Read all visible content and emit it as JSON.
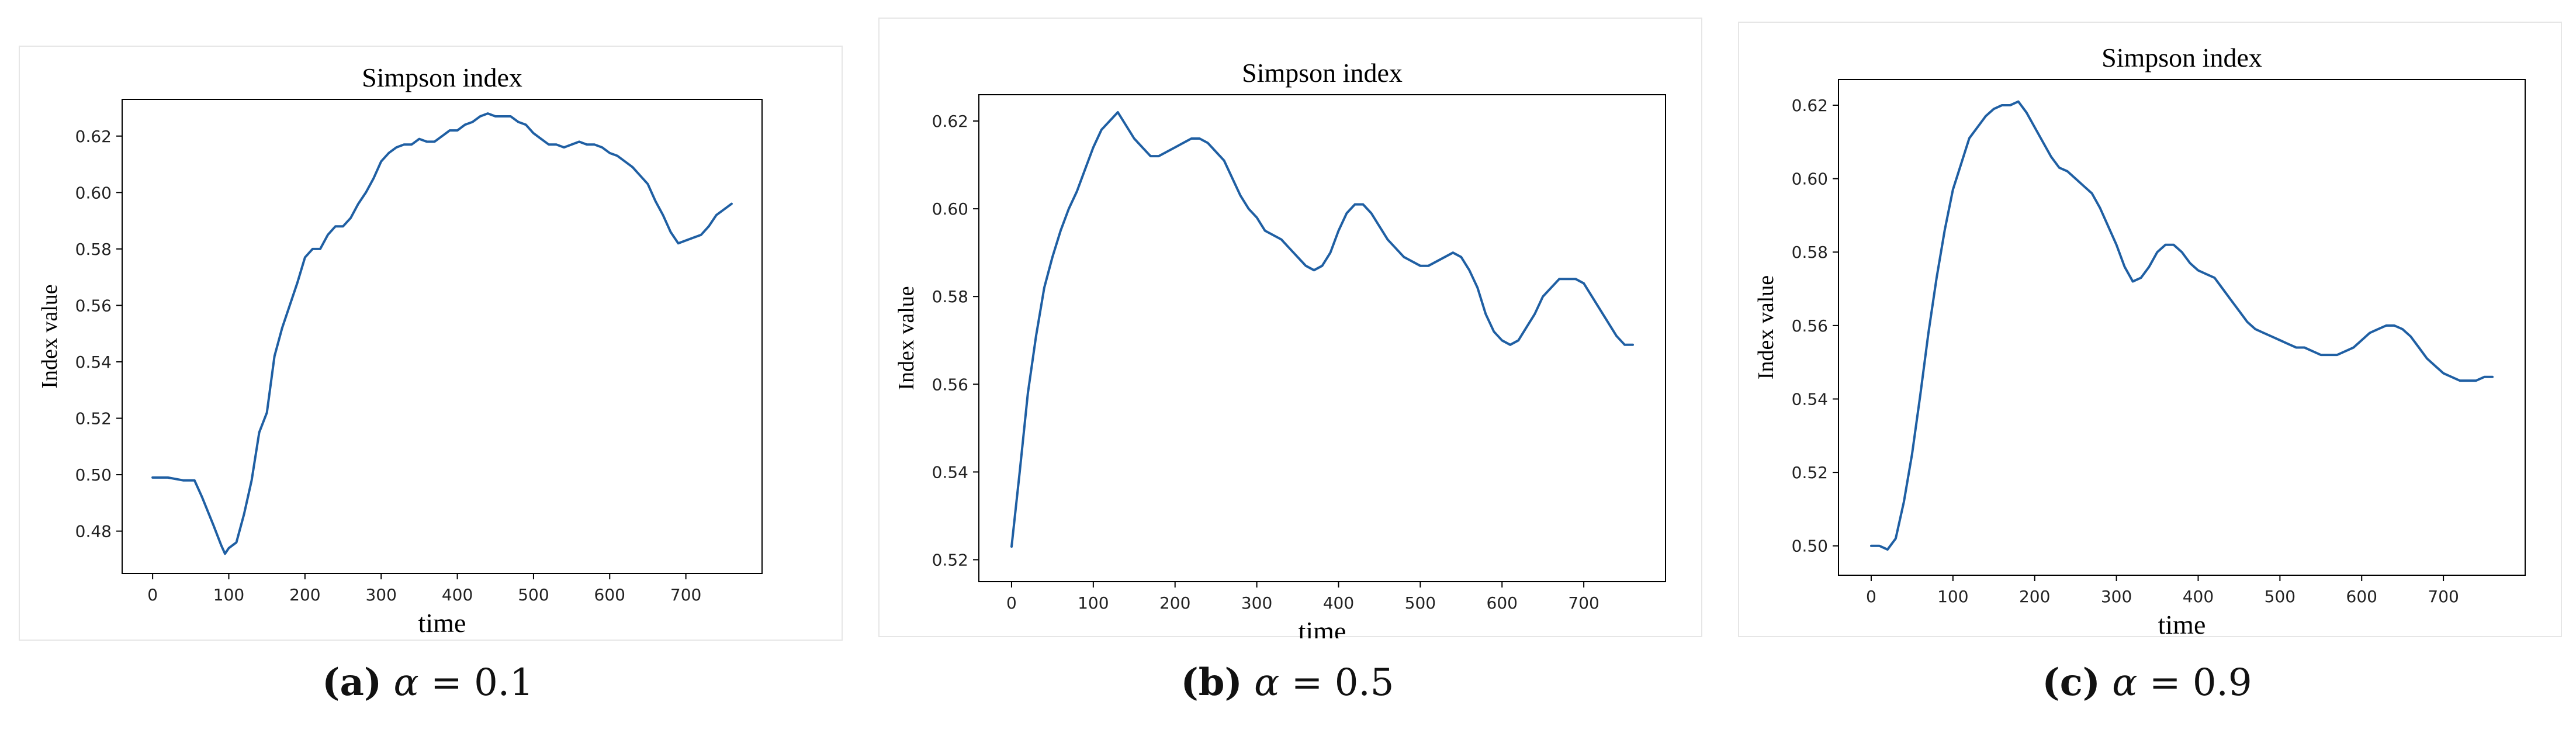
{
  "chart_data": [
    {
      "type": "line",
      "title": "Simpson index",
      "xlabel": "time",
      "ylabel": "Index value",
      "xlim": [
        -40,
        800
      ],
      "ylim": [
        0.465,
        0.633
      ],
      "xticks": [
        0,
        100,
        200,
        300,
        400,
        500,
        600,
        700
      ],
      "yticks": [
        0.48,
        0.5,
        0.52,
        0.54,
        0.56,
        0.58,
        0.6,
        0.62
      ],
      "grid": false,
      "color": "#1f5fa3",
      "series": [
        {
          "x": [
            0,
            20,
            40,
            55,
            65,
            80,
            90,
            95,
            100,
            110,
            120,
            130,
            140,
            150,
            160,
            170,
            180,
            190,
            200,
            210,
            220,
            230,
            240,
            250,
            260,
            270,
            280,
            290,
            300,
            310,
            320,
            330,
            340,
            350,
            360,
            370,
            380,
            390,
            400,
            410,
            420,
            430,
            440,
            450,
            460,
            470,
            480,
            490,
            500,
            510,
            520,
            530,
            540,
            550,
            560,
            570,
            580,
            590,
            600,
            610,
            620,
            630,
            640,
            650,
            660,
            670,
            680,
            690,
            700,
            710,
            720,
            730,
            740,
            750,
            760
          ],
          "values": [
            0.499,
            0.499,
            0.498,
            0.498,
            0.492,
            0.482,
            0.475,
            0.472,
            0.474,
            0.476,
            0.486,
            0.498,
            0.515,
            0.522,
            0.542,
            0.552,
            0.56,
            0.568,
            0.577,
            0.58,
            0.58,
            0.585,
            0.588,
            0.588,
            0.591,
            0.596,
            0.6,
            0.605,
            0.611,
            0.614,
            0.616,
            0.617,
            0.617,
            0.619,
            0.618,
            0.618,
            0.62,
            0.622,
            0.622,
            0.624,
            0.625,
            0.627,
            0.628,
            0.627,
            0.627,
            0.627,
            0.625,
            0.624,
            0.621,
            0.619,
            0.617,
            0.617,
            0.616,
            0.617,
            0.618,
            0.617,
            0.617,
            0.616,
            0.614,
            0.613,
            0.611,
            0.609,
            0.606,
            0.603,
            0.597,
            0.592,
            0.586,
            0.582,
            0.583,
            0.584,
            0.585,
            0.588,
            0.592,
            0.594,
            0.596
          ]
        }
      ]
    },
    {
      "type": "line",
      "title": "Simpson index",
      "xlabel": "time",
      "ylabel": "Index value",
      "xlim": [
        -40,
        800
      ],
      "ylim": [
        0.515,
        0.626
      ],
      "xticks": [
        0,
        100,
        200,
        300,
        400,
        500,
        600,
        700
      ],
      "yticks": [
        0.52,
        0.54,
        0.56,
        0.58,
        0.6,
        0.62
      ],
      "grid": false,
      "color": "#1f5fa3",
      "series": [
        {
          "x": [
            0,
            10,
            20,
            30,
            40,
            50,
            60,
            70,
            80,
            90,
            100,
            110,
            120,
            130,
            140,
            150,
            160,
            170,
            180,
            190,
            200,
            210,
            220,
            230,
            240,
            250,
            260,
            270,
            280,
            290,
            300,
            310,
            320,
            330,
            340,
            350,
            360,
            370,
            380,
            390,
            400,
            410,
            420,
            430,
            440,
            450,
            460,
            470,
            480,
            490,
            500,
            510,
            520,
            530,
            540,
            550,
            560,
            570,
            580,
            590,
            600,
            610,
            620,
            630,
            640,
            650,
            660,
            670,
            680,
            690,
            700,
            710,
            720,
            730,
            740,
            750,
            760
          ],
          "values": [
            0.523,
            0.54,
            0.558,
            0.571,
            0.582,
            0.589,
            0.595,
            0.6,
            0.604,
            0.609,
            0.614,
            0.618,
            0.62,
            0.622,
            0.619,
            0.616,
            0.614,
            0.612,
            0.612,
            0.613,
            0.614,
            0.615,
            0.616,
            0.616,
            0.615,
            0.613,
            0.611,
            0.607,
            0.603,
            0.6,
            0.598,
            0.595,
            0.594,
            0.593,
            0.591,
            0.589,
            0.587,
            0.586,
            0.587,
            0.59,
            0.595,
            0.599,
            0.601,
            0.601,
            0.599,
            0.596,
            0.593,
            0.591,
            0.589,
            0.588,
            0.587,
            0.587,
            0.588,
            0.589,
            0.59,
            0.589,
            0.586,
            0.582,
            0.576,
            0.572,
            0.57,
            0.569,
            0.57,
            0.573,
            0.576,
            0.58,
            0.582,
            0.584,
            0.584,
            0.584,
            0.583,
            0.58,
            0.577,
            0.574,
            0.571,
            0.569,
            0.569
          ]
        }
      ]
    },
    {
      "type": "line",
      "title": "Simpson index",
      "xlabel": "time",
      "ylabel": "Index value",
      "xlim": [
        -40,
        800
      ],
      "ylim": [
        0.492,
        0.627
      ],
      "xticks": [
        0,
        100,
        200,
        300,
        400,
        500,
        600,
        700
      ],
      "yticks": [
        0.5,
        0.52,
        0.54,
        0.56,
        0.58,
        0.6,
        0.62
      ],
      "grid": false,
      "color": "#1f5fa3",
      "series": [
        {
          "x": [
            0,
            10,
            20,
            30,
            40,
            50,
            60,
            70,
            80,
            90,
            100,
            110,
            120,
            130,
            140,
            150,
            160,
            170,
            180,
            190,
            200,
            210,
            220,
            230,
            240,
            250,
            260,
            270,
            280,
            290,
            300,
            310,
            320,
            330,
            340,
            350,
            360,
            370,
            380,
            390,
            400,
            410,
            420,
            430,
            440,
            450,
            460,
            470,
            480,
            490,
            500,
            510,
            520,
            530,
            540,
            550,
            560,
            570,
            580,
            590,
            600,
            610,
            620,
            630,
            640,
            650,
            660,
            670,
            680,
            690,
            700,
            710,
            720,
            730,
            740,
            750,
            760
          ],
          "values": [
            0.5,
            0.5,
            0.499,
            0.502,
            0.512,
            0.525,
            0.541,
            0.558,
            0.573,
            0.586,
            0.597,
            0.604,
            0.611,
            0.614,
            0.617,
            0.619,
            0.62,
            0.62,
            0.621,
            0.618,
            0.614,
            0.61,
            0.606,
            0.603,
            0.602,
            0.6,
            0.598,
            0.596,
            0.592,
            0.587,
            0.582,
            0.576,
            0.572,
            0.573,
            0.576,
            0.58,
            0.582,
            0.582,
            0.58,
            0.577,
            0.575,
            0.574,
            0.573,
            0.57,
            0.567,
            0.564,
            0.561,
            0.559,
            0.558,
            0.557,
            0.556,
            0.555,
            0.554,
            0.554,
            0.553,
            0.552,
            0.552,
            0.552,
            0.553,
            0.554,
            0.556,
            0.558,
            0.559,
            0.56,
            0.56,
            0.559,
            0.557,
            0.554,
            0.551,
            0.549,
            0.547,
            0.546,
            0.545,
            0.545,
            0.545,
            0.546,
            0.546
          ]
        }
      ]
    }
  ],
  "captions": [
    {
      "letter": "(a)",
      "param": "α",
      "rest": " = 0.1"
    },
    {
      "letter": "(b)",
      "param": "α",
      "rest": " = 0.5"
    },
    {
      "letter": "(c)",
      "param": "α",
      "rest": " = 0.9"
    }
  ]
}
